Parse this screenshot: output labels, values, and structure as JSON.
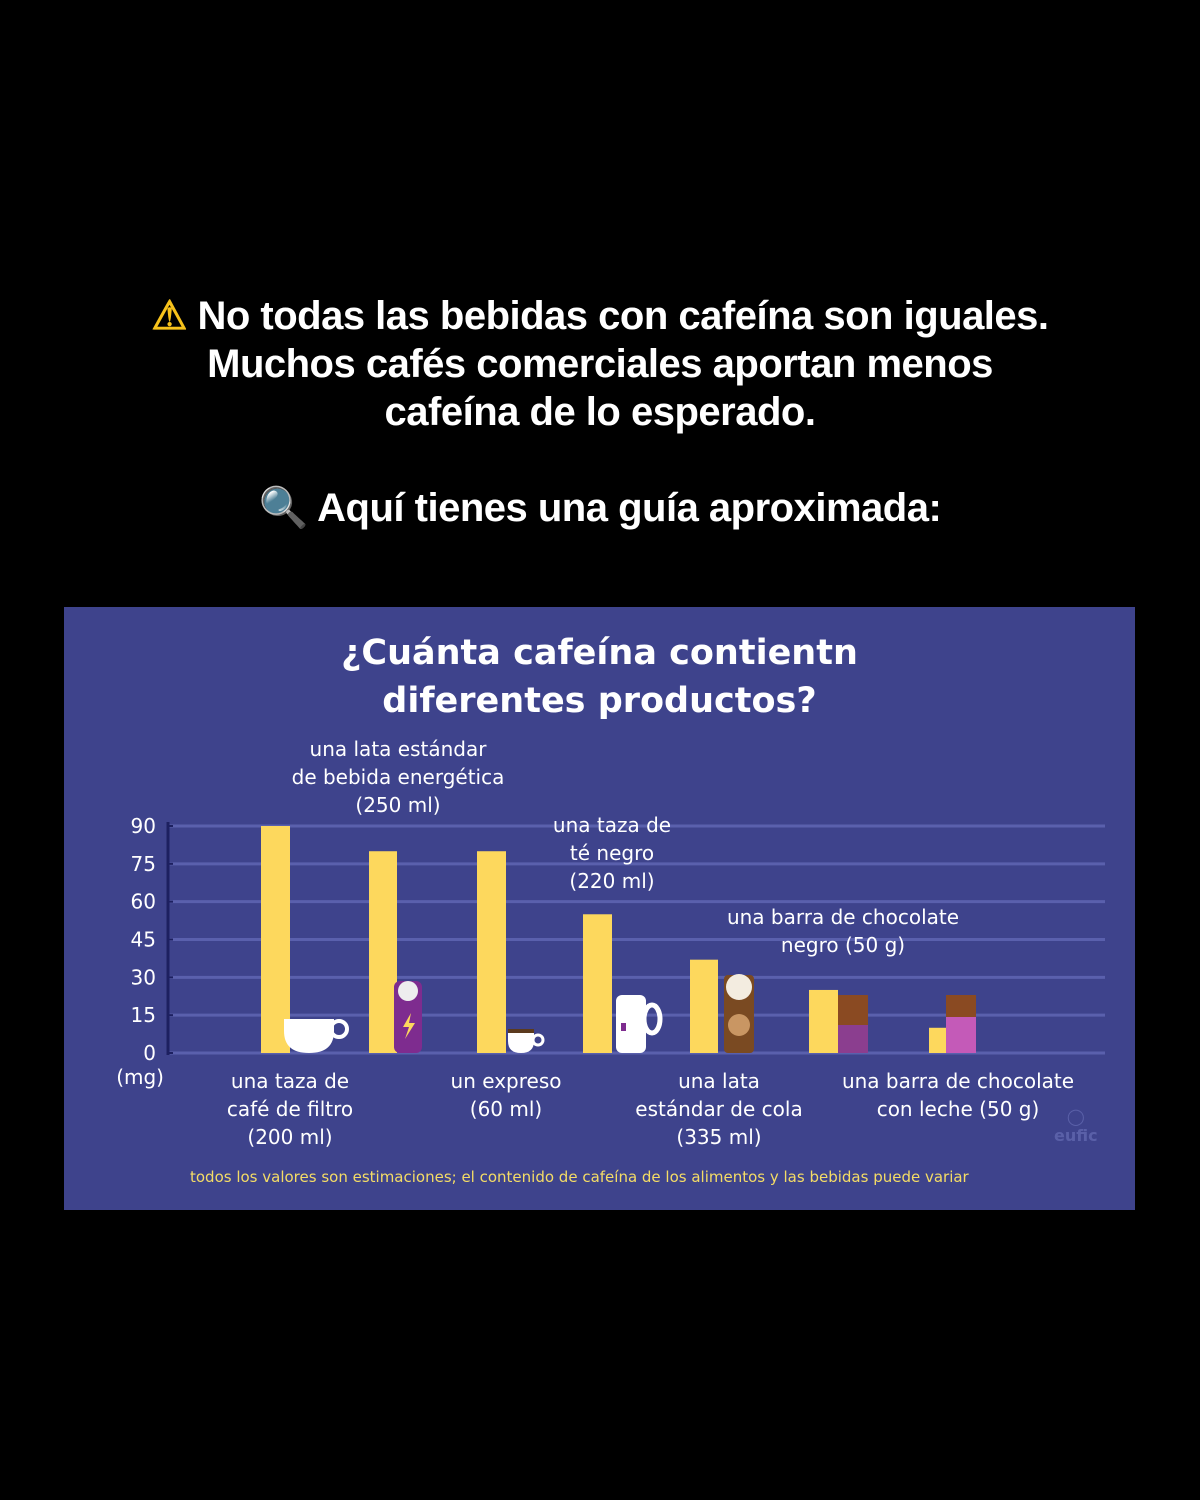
{
  "caption": {
    "warning_icon": "warning-icon",
    "line1": "No todas las bebidas con cafeína son iguales.",
    "line2": "Muchos cafés comerciales aportan menos",
    "line3": "cafeína de lo esperado.",
    "search_icon": "magnifier-icon",
    "line4": "Aquí tienes una guía aproximada:"
  },
  "chart_data": {
    "type": "bar",
    "title_line1": "¿Cuánta cafeína contientn",
    "title_line2": "diferentes productos?",
    "ylabel": "(mg)",
    "ylim": [
      0,
      90
    ],
    "yticks": [
      "0",
      "15",
      "30",
      "45",
      "60",
      "75",
      "90"
    ],
    "grid": true,
    "categories": [
      [
        "una taza de",
        "café de filtro",
        "(200 ml)"
      ],
      [
        "una lata estándar",
        "de bebida energética",
        "(250 ml)"
      ],
      [
        "un expreso",
        "(60 ml)"
      ],
      [
        "una taza de",
        "té negro",
        "(220 ml)"
      ],
      [
        "una lata",
        "estándar de cola",
        "(335 ml)"
      ],
      [
        "una barra de chocolate",
        "negro (50 g)"
      ],
      [
        "una barra de chocolate",
        "con leche (50 g)"
      ]
    ],
    "values": [
      90,
      80,
      80,
      55,
      37,
      25,
      10
    ],
    "icons": [
      "coffee-cup-icon",
      "energy-drink-can-icon",
      "espresso-cup-icon",
      "tea-mug-icon",
      "cola-can-icon",
      "dark-chocolate-icon",
      "milk-chocolate-icon"
    ],
    "bar_color": "#fdd85d",
    "background_color": "#3e438c",
    "note": "todos los valores son estimaciones; el contenido de cafeína de los alimentos y las bebidas puede variar",
    "watermark": "eufic"
  }
}
